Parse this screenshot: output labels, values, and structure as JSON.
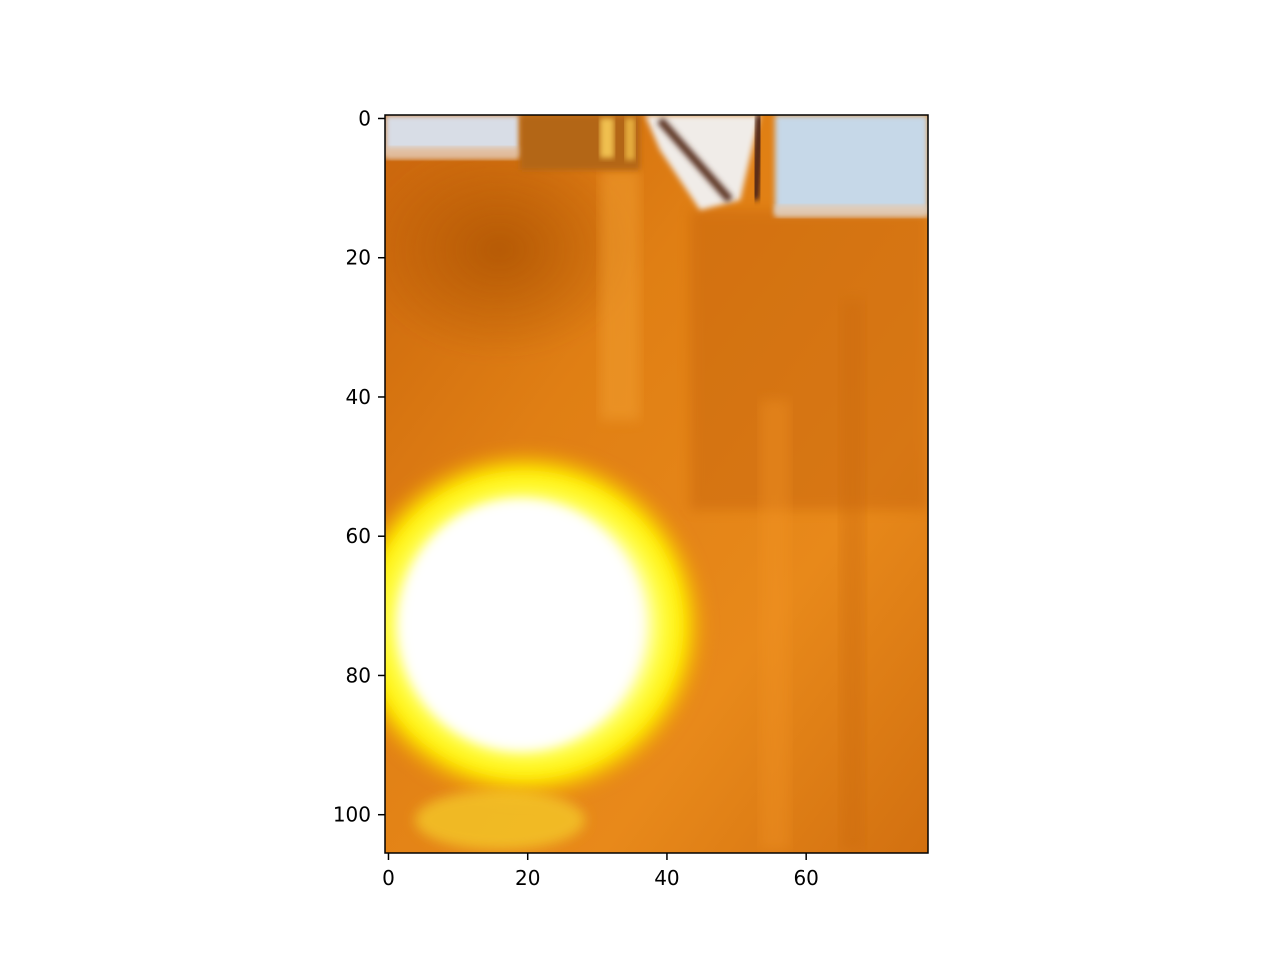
{
  "figure": {
    "background": "#ffffff",
    "axes_color": "#000000"
  },
  "image": {
    "description_colors": {
      "floor": "#d9780f",
      "floor_dark": "#b85c0a",
      "glare_core": "#ffffff",
      "glare_ring": "#ffff1a",
      "window": "#c9d9e8"
    }
  },
  "axes": {
    "x_ticks": [
      {
        "value": 0,
        "label": "0"
      },
      {
        "value": 20,
        "label": "20"
      },
      {
        "value": 40,
        "label": "40"
      },
      {
        "value": 60,
        "label": "60"
      }
    ],
    "y_ticks": [
      {
        "value": 0,
        "label": "0"
      },
      {
        "value": 20,
        "label": "20"
      },
      {
        "value": 40,
        "label": "40"
      },
      {
        "value": 60,
        "label": "60"
      },
      {
        "value": 80,
        "label": "80"
      },
      {
        "value": 100,
        "label": "100"
      }
    ],
    "x_range": [
      -0.5,
      77.5
    ],
    "y_range": [
      105.5,
      -0.5
    ]
  }
}
